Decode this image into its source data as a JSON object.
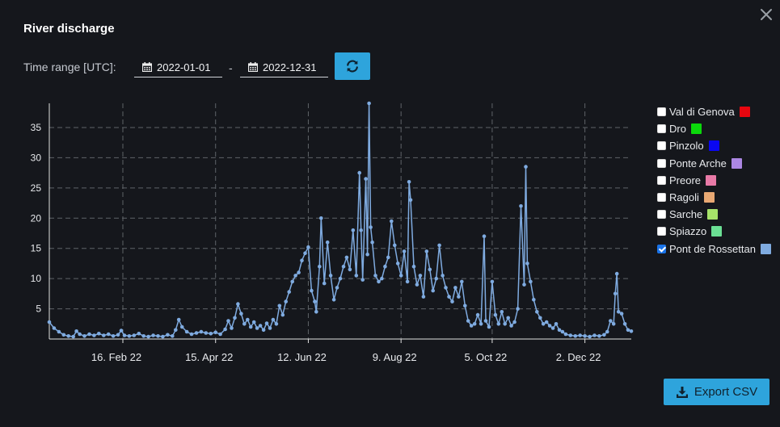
{
  "dialog": {
    "title": "River discharge"
  },
  "time_range": {
    "label": "Time range [UTC]:",
    "start": "2022-01-01",
    "separator": "-",
    "end": "2022-12-31"
  },
  "export": {
    "label": "Export CSV"
  },
  "legend": [
    {
      "name": "Val di Genova",
      "color": "#e8060f",
      "checked": false
    },
    {
      "name": "Dro",
      "color": "#0bd80b",
      "checked": false
    },
    {
      "name": "Pinzolo",
      "color": "#0a07f2",
      "checked": false
    },
    {
      "name": "Ponte Arche",
      "color": "#ac87e3",
      "checked": false
    },
    {
      "name": "Preore",
      "color": "#e87aa7",
      "checked": false
    },
    {
      "name": "Ragoli",
      "color": "#e8a873",
      "checked": false
    },
    {
      "name": "Sarche",
      "color": "#a6e36a",
      "checked": false
    },
    {
      "name": "Spiazzo",
      "color": "#6bdf94",
      "checked": false
    },
    {
      "name": "Pont de Rossettan",
      "color": "#7fabe0",
      "checked": true
    }
  ],
  "chart_data": {
    "type": "line",
    "x_type": "date",
    "xlim": [
      "2022-01-01",
      "2022-12-31"
    ],
    "ylim": [
      0,
      39
    ],
    "yticks": [
      5,
      10,
      15,
      20,
      25,
      30,
      35
    ],
    "xticks": [
      {
        "date": "2022-02-16",
        "label": "16. Feb 22"
      },
      {
        "date": "2022-04-15",
        "label": "15. Apr 22"
      },
      {
        "date": "2022-06-12",
        "label": "12. Jun 22"
      },
      {
        "date": "2022-08-09",
        "label": "9. Aug 22"
      },
      {
        "date": "2022-10-05",
        "label": "5. Oct 22"
      },
      {
        "date": "2022-12-02",
        "label": "2. Dec 22"
      }
    ],
    "grid": "dashed",
    "title": "",
    "xlabel": "",
    "ylabel": "",
    "series": [
      {
        "name": "Pont de Rossettan",
        "color": "#7fabe0",
        "points": [
          [
            "2022-01-01",
            2.8
          ],
          [
            "2022-01-04",
            1.8
          ],
          [
            "2022-01-07",
            1.2
          ],
          [
            "2022-01-10",
            0.7
          ],
          [
            "2022-01-13",
            0.5
          ],
          [
            "2022-01-16",
            0.4
          ],
          [
            "2022-01-18",
            1.3
          ],
          [
            "2022-01-20",
            0.8
          ],
          [
            "2022-01-23",
            0.5
          ],
          [
            "2022-01-26",
            0.8
          ],
          [
            "2022-01-29",
            0.6
          ],
          [
            "2022-02-01",
            0.9
          ],
          [
            "2022-02-04",
            0.6
          ],
          [
            "2022-02-07",
            0.8
          ],
          [
            "2022-02-10",
            0.5
          ],
          [
            "2022-02-13",
            0.7
          ],
          [
            "2022-02-15",
            1.4
          ],
          [
            "2022-02-17",
            0.6
          ],
          [
            "2022-02-20",
            0.5
          ],
          [
            "2022-02-23",
            0.6
          ],
          [
            "2022-02-26",
            0.9
          ],
          [
            "2022-03-01",
            0.5
          ],
          [
            "2022-03-04",
            0.4
          ],
          [
            "2022-03-07",
            0.6
          ],
          [
            "2022-03-10",
            0.5
          ],
          [
            "2022-03-13",
            0.4
          ],
          [
            "2022-03-16",
            0.7
          ],
          [
            "2022-03-19",
            0.5
          ],
          [
            "2022-03-21",
            1.5
          ],
          [
            "2022-03-23",
            3.2
          ],
          [
            "2022-03-25",
            2.0
          ],
          [
            "2022-03-28",
            1.2
          ],
          [
            "2022-03-31",
            0.8
          ],
          [
            "2022-04-03",
            1.0
          ],
          [
            "2022-04-06",
            1.2
          ],
          [
            "2022-04-09",
            1.0
          ],
          [
            "2022-04-12",
            0.9
          ],
          [
            "2022-04-15",
            1.1
          ],
          [
            "2022-04-18",
            0.8
          ],
          [
            "2022-04-21",
            1.6
          ],
          [
            "2022-04-23",
            3.0
          ],
          [
            "2022-04-25",
            1.8
          ],
          [
            "2022-04-27",
            3.5
          ],
          [
            "2022-04-29",
            5.8
          ],
          [
            "2022-05-01",
            4.2
          ],
          [
            "2022-05-03",
            2.5
          ],
          [
            "2022-05-05",
            3.2
          ],
          [
            "2022-05-07",
            2.0
          ],
          [
            "2022-05-09",
            2.8
          ],
          [
            "2022-05-11",
            1.8
          ],
          [
            "2022-05-13",
            2.2
          ],
          [
            "2022-05-15",
            1.5
          ],
          [
            "2022-05-17",
            2.6
          ],
          [
            "2022-05-19",
            1.8
          ],
          [
            "2022-05-21",
            3.2
          ],
          [
            "2022-05-23",
            2.5
          ],
          [
            "2022-05-25",
            5.5
          ],
          [
            "2022-05-27",
            4.0
          ],
          [
            "2022-05-29",
            6.2
          ],
          [
            "2022-05-31",
            7.8
          ],
          [
            "2022-06-02",
            9.5
          ],
          [
            "2022-06-04",
            10.5
          ],
          [
            "2022-06-06",
            11.0
          ],
          [
            "2022-06-08",
            13.0
          ],
          [
            "2022-06-10",
            14.2
          ],
          [
            "2022-06-12",
            15.2
          ],
          [
            "2022-06-14",
            8.0
          ],
          [
            "2022-06-16",
            6.2
          ],
          [
            "2022-06-17",
            4.5
          ],
          [
            "2022-06-19",
            12.0
          ],
          [
            "2022-06-20",
            20.0
          ],
          [
            "2022-06-22",
            9.2
          ],
          [
            "2022-06-24",
            16.0
          ],
          [
            "2022-06-26",
            10.5
          ],
          [
            "2022-06-28",
            6.5
          ],
          [
            "2022-06-30",
            8.5
          ],
          [
            "2022-07-02",
            10.0
          ],
          [
            "2022-07-04",
            12.0
          ],
          [
            "2022-07-06",
            13.5
          ],
          [
            "2022-07-08",
            11.5
          ],
          [
            "2022-07-10",
            18.0
          ],
          [
            "2022-07-12",
            10.5
          ],
          [
            "2022-07-14",
            27.5
          ],
          [
            "2022-07-15",
            18.0
          ],
          [
            "2022-07-16",
            9.8
          ],
          [
            "2022-07-18",
            26.5
          ],
          [
            "2022-07-19",
            14.0
          ],
          [
            "2022-07-20",
            39.0
          ],
          [
            "2022-07-21",
            18.5
          ],
          [
            "2022-07-22",
            16.0
          ],
          [
            "2022-07-24",
            10.5
          ],
          [
            "2022-07-26",
            9.5
          ],
          [
            "2022-07-28",
            10.0
          ],
          [
            "2022-07-30",
            12.0
          ],
          [
            "2022-08-01",
            13.5
          ],
          [
            "2022-08-03",
            19.5
          ],
          [
            "2022-08-05",
            15.5
          ],
          [
            "2022-08-07",
            12.5
          ],
          [
            "2022-08-09",
            10.5
          ],
          [
            "2022-08-11",
            14.5
          ],
          [
            "2022-08-13",
            9.5
          ],
          [
            "2022-08-14",
            26.0
          ],
          [
            "2022-08-15",
            23.0
          ],
          [
            "2022-08-17",
            12.0
          ],
          [
            "2022-08-19",
            9.0
          ],
          [
            "2022-08-21",
            10.5
          ],
          [
            "2022-08-23",
            7.0
          ],
          [
            "2022-08-25",
            14.5
          ],
          [
            "2022-08-27",
            11.5
          ],
          [
            "2022-08-29",
            8.0
          ],
          [
            "2022-08-31",
            10.0
          ],
          [
            "2022-09-02",
            15.5
          ],
          [
            "2022-09-04",
            10.5
          ],
          [
            "2022-09-06",
            8.5
          ],
          [
            "2022-09-08",
            7.0
          ],
          [
            "2022-09-10",
            6.2
          ],
          [
            "2022-09-12",
            8.5
          ],
          [
            "2022-09-14",
            7.0
          ],
          [
            "2022-09-16",
            9.5
          ],
          [
            "2022-09-18",
            5.5
          ],
          [
            "2022-09-20",
            3.0
          ],
          [
            "2022-09-22",
            2.2
          ],
          [
            "2022-09-24",
            2.5
          ],
          [
            "2022-09-26",
            4.0
          ],
          [
            "2022-09-28",
            2.5
          ],
          [
            "2022-09-30",
            17.0
          ],
          [
            "2022-10-01",
            3.0
          ],
          [
            "2022-10-03",
            2.0
          ],
          [
            "2022-10-05",
            9.5
          ],
          [
            "2022-10-07",
            4.0
          ],
          [
            "2022-10-09",
            2.5
          ],
          [
            "2022-10-11",
            4.5
          ],
          [
            "2022-10-13",
            2.5
          ],
          [
            "2022-10-15",
            3.5
          ],
          [
            "2022-10-17",
            2.2
          ],
          [
            "2022-10-19",
            2.8
          ],
          [
            "2022-10-21",
            5.0
          ],
          [
            "2022-10-23",
            22.0
          ],
          [
            "2022-10-25",
            9.0
          ],
          [
            "2022-10-26",
            28.5
          ],
          [
            "2022-10-27",
            12.5
          ],
          [
            "2022-10-29",
            9.5
          ],
          [
            "2022-10-31",
            6.5
          ],
          [
            "2022-11-02",
            4.5
          ],
          [
            "2022-11-04",
            3.5
          ],
          [
            "2022-11-06",
            2.5
          ],
          [
            "2022-11-08",
            2.8
          ],
          [
            "2022-11-10",
            2.2
          ],
          [
            "2022-11-12",
            1.8
          ],
          [
            "2022-11-14",
            2.5
          ],
          [
            "2022-11-16",
            1.5
          ],
          [
            "2022-11-18",
            1.2
          ],
          [
            "2022-11-20",
            0.8
          ],
          [
            "2022-11-23",
            0.6
          ],
          [
            "2022-11-26",
            0.5
          ],
          [
            "2022-11-29",
            0.6
          ],
          [
            "2022-12-02",
            0.5
          ],
          [
            "2022-12-05",
            0.4
          ],
          [
            "2022-12-08",
            0.6
          ],
          [
            "2022-12-11",
            0.5
          ],
          [
            "2022-12-14",
            0.7
          ],
          [
            "2022-12-16",
            1.2
          ],
          [
            "2022-12-18",
            3.0
          ],
          [
            "2022-12-20",
            2.5
          ],
          [
            "2022-12-21",
            7.5
          ],
          [
            "2022-12-22",
            10.8
          ],
          [
            "2022-12-23",
            4.5
          ],
          [
            "2022-12-25",
            4.2
          ],
          [
            "2022-12-27",
            2.5
          ],
          [
            "2022-12-29",
            1.5
          ],
          [
            "2022-12-31",
            1.3
          ]
        ]
      }
    ]
  }
}
